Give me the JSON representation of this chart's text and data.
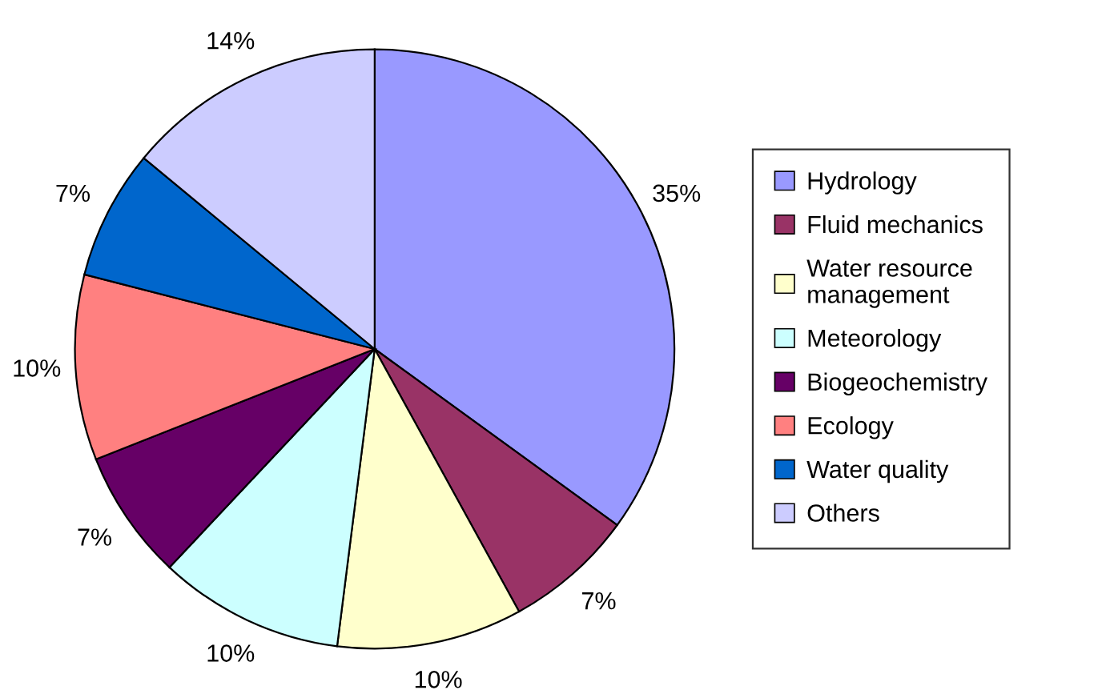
{
  "chart_data": {
    "type": "pie",
    "categories": [
      "Hydrology",
      "Fluid mechanics",
      "Water resource\nmanagement",
      "Meteorology",
      "Biogeochemistry",
      "Ecology",
      "Water quality",
      "Others"
    ],
    "values": [
      35,
      7,
      10,
      10,
      7,
      10,
      7,
      14
    ],
    "colors": [
      "#9999ff",
      "#993366",
      "#ffffcc",
      "#ccffff",
      "#660066",
      "#ff8080",
      "#0066cc",
      "#ccccff"
    ],
    "value_labels": [
      "35%",
      "7%",
      "10%",
      "10%",
      "7%",
      "10%",
      "7%",
      "14%"
    ],
    "legend": "right"
  }
}
